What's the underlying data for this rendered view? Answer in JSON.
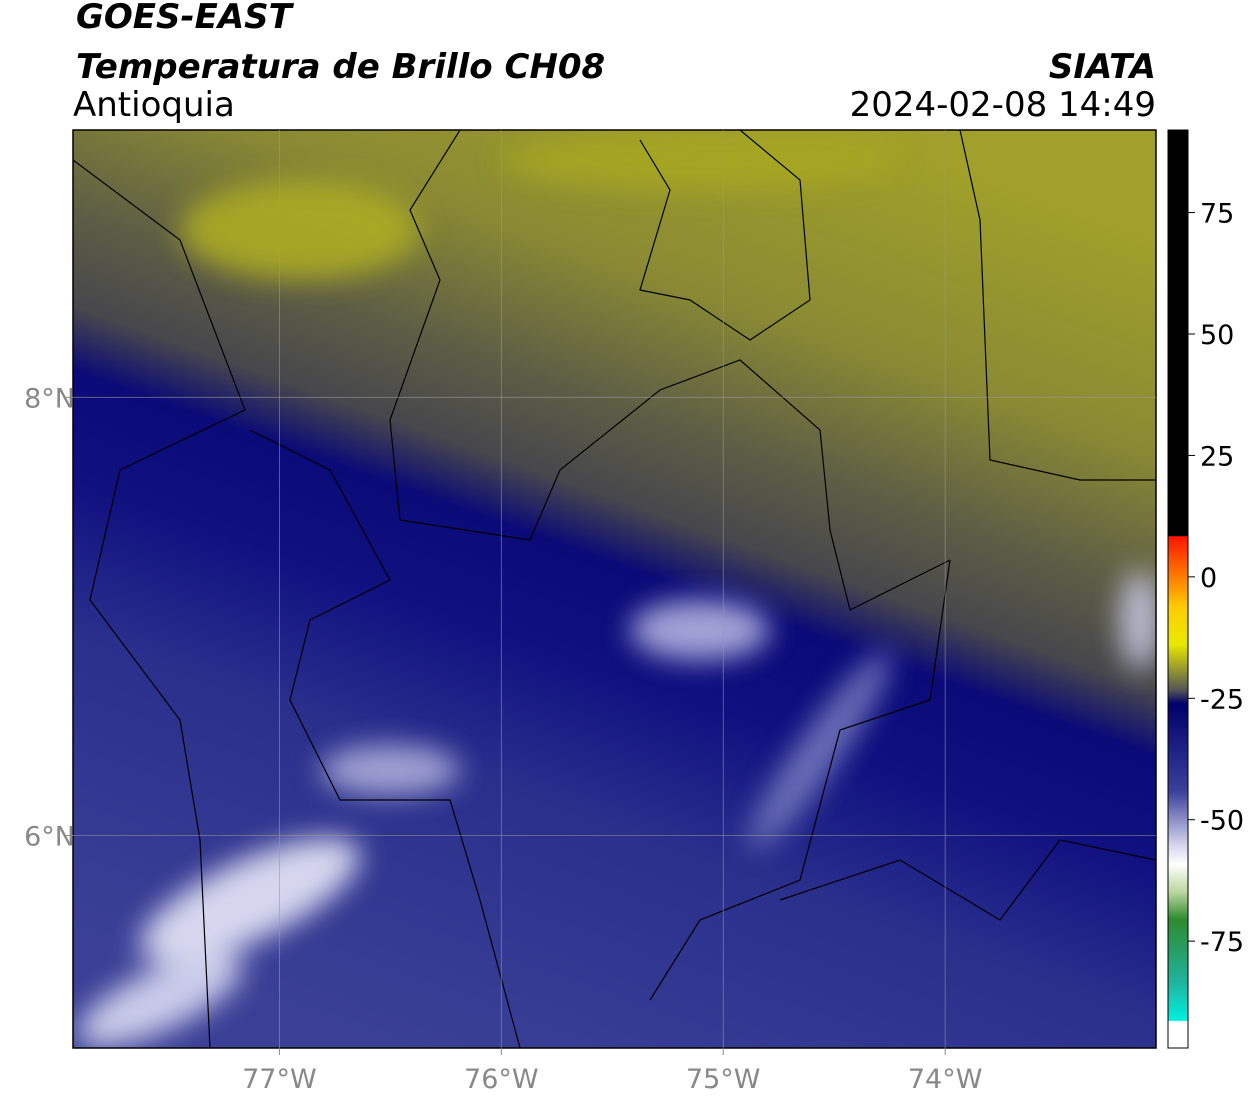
{
  "header": {
    "title": "GOES-EAST",
    "subtitle": "Temperatura de Brillo CH08",
    "region": "Antioquia",
    "source": "SIATA",
    "datetime": "2024-02-08 14:49"
  },
  "map": {
    "xlim": [
      -77.93,
      -73.05
    ],
    "ylim": [
      5.03,
      9.22
    ],
    "xticks": [
      {
        "value": -77,
        "label": "77°W"
      },
      {
        "value": -76,
        "label": "76°W"
      },
      {
        "value": -75,
        "label": "75°W"
      },
      {
        "value": -74,
        "label": "74°W"
      }
    ],
    "yticks": [
      {
        "value": 8,
        "label": "8°N"
      },
      {
        "value": 6,
        "label": "6°N"
      }
    ]
  },
  "colorbar": {
    "lim": [
      -97,
      92
    ],
    "ticks": [
      75,
      50,
      25,
      0,
      -25,
      -50,
      -75
    ]
  }
}
